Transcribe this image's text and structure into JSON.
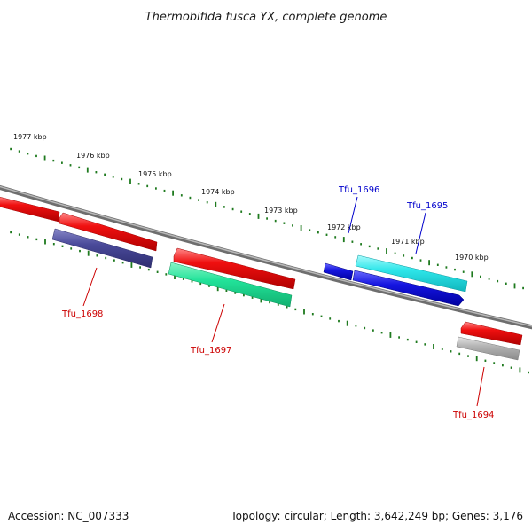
{
  "title": "Thermobifida fusca YX, complete genome",
  "footer": {
    "accession": "Accession: NC_007333",
    "summary": "Topology: circular; Length: 3,642,249 bp; Genes: 3,176"
  },
  "scale_labels": [
    "1977 kbp",
    "1976 kbp",
    "1975 kbp",
    "1974 kbp",
    "1973 kbp",
    "1972 kbp",
    "1971 kbp",
    "1970 kbp"
  ],
  "genes": [
    {
      "label": "Tfu_1698",
      "label_color": "#cc0000",
      "color": "#4a4a9a"
    },
    {
      "label": "Tfu_1697",
      "label_color": "#cc0000",
      "color": "#22e39a"
    },
    {
      "label": "Tfu_1696",
      "label_color": "#0000cc",
      "color": "#1515e0"
    },
    {
      "label": "Tfu_1695",
      "label_color": "#0000cc",
      "color": "#2ee6ea"
    },
    {
      "label": "Tfu_1694",
      "label_color": "#cc0000",
      "color": "#b4b4b4"
    }
  ],
  "colors": {
    "backbone": "#808080",
    "cds": "#e8111b",
    "ticks": "#1f7a1f"
  }
}
